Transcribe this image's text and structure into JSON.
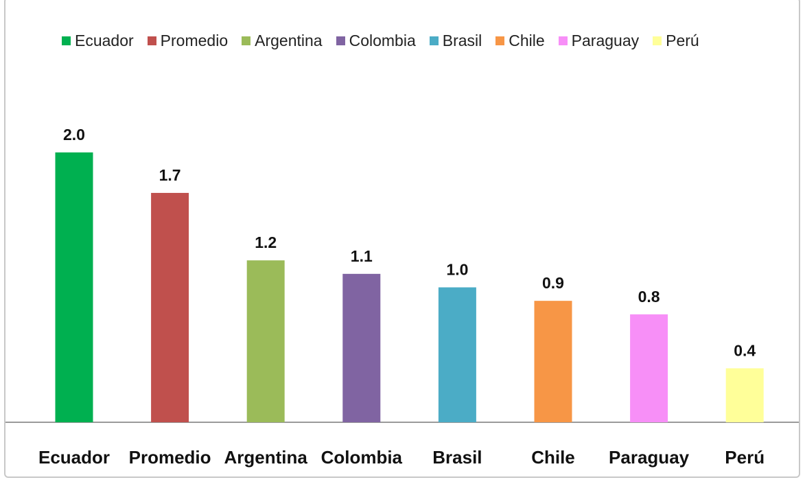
{
  "chart_data": {
    "type": "bar",
    "categories": [
      "Ecuador",
      "Promedio",
      "Argentina",
      "Colombia",
      "Brasil",
      "Chile",
      "Paraguay",
      "Perú"
    ],
    "values": [
      2.0,
      1.7,
      1.2,
      1.1,
      1.0,
      0.9,
      0.8,
      0.4
    ],
    "value_labels": [
      "2.0",
      "1.7",
      "1.2",
      "1.1",
      "1.0",
      "0.9",
      "0.8",
      "0.4"
    ],
    "colors": [
      "#00b050",
      "#c0504d",
      "#9bbb59",
      "#8064a2",
      "#4bacc6",
      "#f79646",
      "#f78ff7",
      "#ffff99"
    ],
    "legend": {
      "placement": "top",
      "entries": [
        "Ecuador",
        "Promedio",
        "Argentina",
        "Colombia",
        "Brasil",
        "Chile",
        "Paraguay",
        "Perú"
      ]
    },
    "title": "",
    "xlabel": "",
    "ylabel": "",
    "ylim": [
      0,
      2.0
    ],
    "grid": false
  }
}
